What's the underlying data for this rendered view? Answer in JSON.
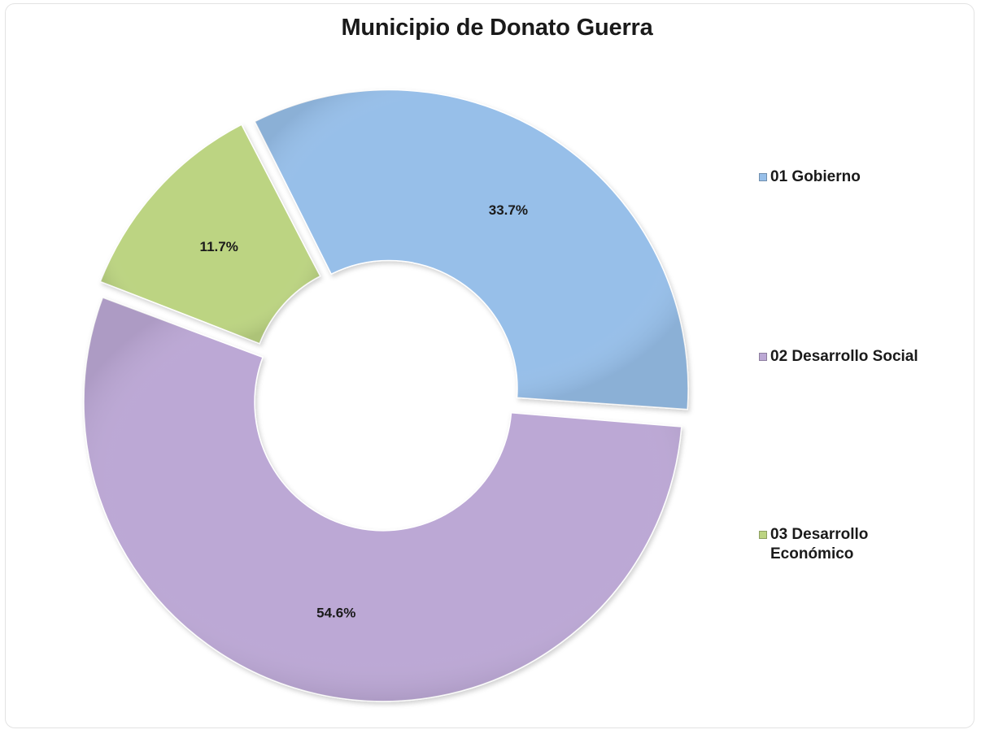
{
  "chart_data": {
    "type": "pie",
    "title": "Municipio de Donato Guerra",
    "categories": [
      "01 Gobierno",
      "02 Desarrollo Social",
      "03 Desarrollo Económico"
    ],
    "values": [
      33.7,
      54.6,
      11.7
    ],
    "value_labels": [
      "33.7%",
      "54.6%",
      "11.7%"
    ],
    "unit": "%",
    "colors": [
      "#97bfe9",
      "#bca8d5",
      "#bcd482"
    ],
    "legend": "right",
    "style": "doughnut"
  }
}
